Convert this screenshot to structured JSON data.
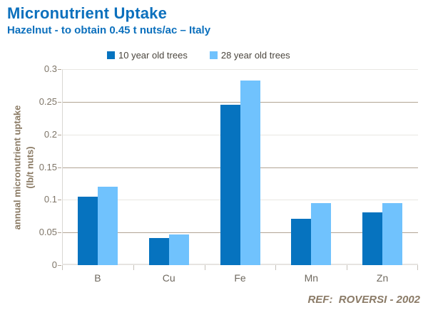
{
  "header": {
    "title": "Micronutrient Uptake",
    "subtitle": "Hazelnut - to obtain 0.45 t nuts/ac – Italy"
  },
  "footer": {
    "ref": "REF:  ROVERSI - 2002"
  },
  "chart_data": {
    "type": "bar",
    "title": "Micronutrient Uptake",
    "subtitle": "Hazelnut - to obtain 0.45 t nuts/ac – Italy",
    "categories": [
      "B",
      "Cu",
      "Fe",
      "Mn",
      "Zn"
    ],
    "series": [
      {
        "name": "10 year old trees",
        "values": [
          0.105,
          0.041,
          0.245,
          0.071,
          0.081
        ]
      },
      {
        "name": "28 year old trees",
        "values": [
          0.12,
          0.047,
          0.283,
          0.095,
          0.095
        ]
      }
    ],
    "xlabel": "",
    "ylabel_lines": [
      "annual micronutrient uptake",
      "(lb/t nuts)"
    ],
    "ylim": [
      0,
      0.3
    ],
    "ytick_step": 0.05,
    "yticks": [
      "0",
      "0.05",
      "0.1",
      "0.15",
      "0.2",
      "0.25",
      "0.3"
    ],
    "legend_position": "top",
    "grid": true,
    "annotation": "REF:  ROVERSI - 2002"
  },
  "colors": {
    "title_blue": "#0c70bd",
    "series": [
      "#0673bf",
      "#70c2fd"
    ],
    "grid_light": "#e9e7e3",
    "grid_tan": "#b2a494",
    "axis_line": "#d9d7d3",
    "tick_text": "#7e7568",
    "category_text": "#6f695f",
    "y_title_text": "#8a7a64",
    "legend_text": "#4b463e",
    "ref_text": "#8a7a66"
  }
}
